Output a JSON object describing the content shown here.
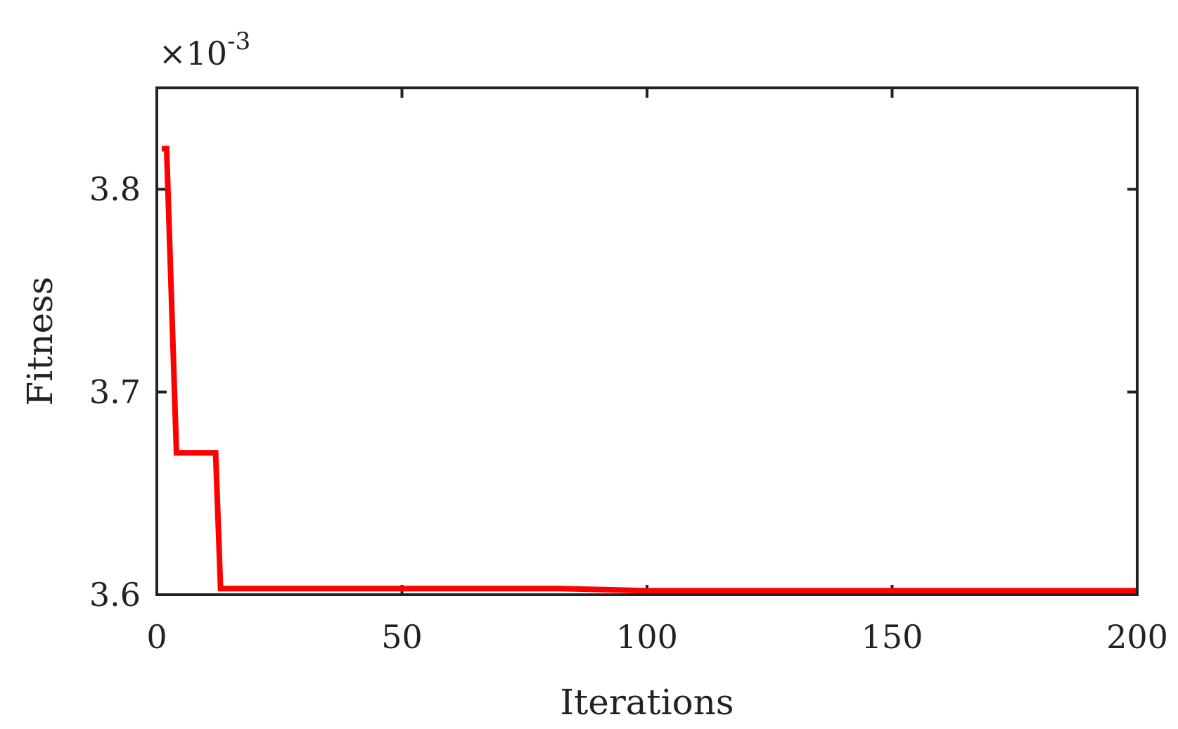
{
  "chart_data": {
    "type": "line",
    "title": "",
    "xlabel": "Iterations",
    "ylabel": "Fitness",
    "xlim": [
      0,
      200
    ],
    "ylim": [
      3.6,
      3.85
    ],
    "x_ticks": [
      0,
      50,
      100,
      150,
      200
    ],
    "y_ticks": [
      3.6,
      3.7,
      3.8
    ],
    "x_tick_labels": [
      "0",
      "50",
      "100",
      "150",
      "200"
    ],
    "y_tick_labels": [
      "3.6",
      "3.7",
      "3.8"
    ],
    "exponent": {
      "prefix": "×10",
      "power": "-3"
    },
    "grid": false,
    "legend": "none",
    "line_color": "#ff0000",
    "axis_color": "#222222",
    "series": [
      {
        "x": [
          1,
          2,
          4,
          12,
          13,
          20,
          40,
          60,
          82,
          100,
          120,
          150,
          175,
          200
        ],
        "y": [
          3.82,
          3.82,
          3.67,
          3.67,
          3.603,
          3.603,
          3.603,
          3.603,
          3.603,
          3.602,
          3.602,
          3.602,
          3.602,
          3.602
        ]
      }
    ]
  }
}
